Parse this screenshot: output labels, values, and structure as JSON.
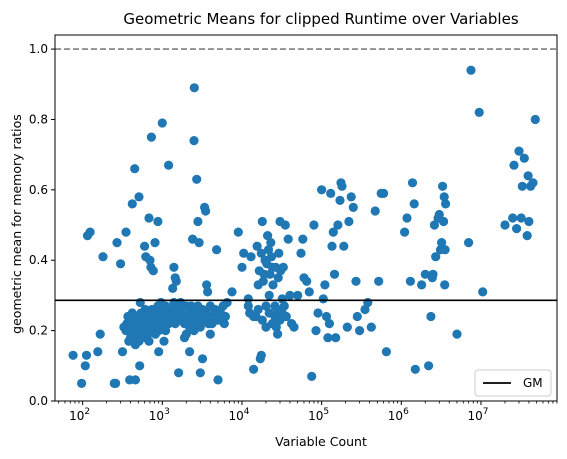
{
  "chart_data": {
    "type": "scatter",
    "title": "Geometric Means for clipped Runtime over Variables",
    "xlabel": "Variable Count",
    "ylabel": "geometric mean for memory ratios",
    "x_scale": "log",
    "xlim": [
      45,
      90000000
    ],
    "ylim": [
      0.0,
      1.04
    ],
    "x_ticks": [
      {
        "value": 100,
        "base": "10",
        "exp": "2"
      },
      {
        "value": 1000,
        "base": "10",
        "exp": "3"
      },
      {
        "value": 10000,
        "base": "10",
        "exp": "4"
      },
      {
        "value": 100000,
        "base": "10",
        "exp": "5"
      },
      {
        "value": 1000000,
        "base": "10",
        "exp": "6"
      },
      {
        "value": 10000000,
        "base": "10",
        "exp": "7"
      }
    ],
    "y_ticks": [
      {
        "value": 0.0,
        "label": "0.0"
      },
      {
        "value": 0.2,
        "label": "0.2"
      },
      {
        "value": 0.4,
        "label": "0.4"
      },
      {
        "value": 0.6,
        "label": "0.6"
      },
      {
        "value": 0.8,
        "label": "0.8"
      },
      {
        "value": 1.0,
        "label": "1.0"
      }
    ],
    "grid": false,
    "legend": {
      "position": "lower-right",
      "entries": [
        {
          "label": "GM",
          "style": "line",
          "color": "#000000"
        }
      ]
    },
    "reference_lines": [
      {
        "name": "GM",
        "y": 0.286,
        "color": "#000000",
        "style": "solid"
      },
      {
        "y": 1.0,
        "color": "#808080",
        "style": "dashed"
      }
    ],
    "marker_color": "#1f77b4",
    "points": [
      [
        76,
        0.13
      ],
      [
        97,
        0.05
      ],
      [
        108,
        0.1
      ],
      [
        112,
        0.13
      ],
      [
        115,
        0.47
      ],
      [
        124,
        0.48
      ],
      [
        155,
        0.14
      ],
      [
        166,
        0.19
      ],
      [
        180,
        0.41
      ],
      [
        250,
        0.05
      ],
      [
        259,
        0.05
      ],
      [
        270,
        0.45
      ],
      [
        300,
        0.39
      ],
      [
        317,
        0.14
      ],
      [
        330,
        0.21
      ],
      [
        350,
        0.48
      ],
      [
        390,
        0.06
      ],
      [
        400,
        0.18
      ],
      [
        420,
        0.56
      ],
      [
        450,
        0.66
      ],
      [
        460,
        0.06
      ],
      [
        480,
        0.17
      ],
      [
        510,
        0.58
      ],
      [
        520,
        0.1
      ],
      [
        530,
        0.28
      ],
      [
        600,
        0.44
      ],
      [
        620,
        0.41
      ],
      [
        680,
        0.52
      ],
      [
        700,
        0.4
      ],
      [
        720,
        0.38
      ],
      [
        730,
        0.75
      ],
      [
        770,
        0.37
      ],
      [
        810,
        0.45
      ],
      [
        880,
        0.51
      ],
      [
        900,
        0.14
      ],
      [
        960,
        0.28
      ],
      [
        1000,
        0.79
      ],
      [
        1050,
        0.17
      ],
      [
        1100,
        0.2
      ],
      [
        1200,
        0.67
      ],
      [
        1300,
        0.26
      ],
      [
        1350,
        0.32
      ],
      [
        1400,
        0.38
      ],
      [
        1450,
        0.35
      ],
      [
        1500,
        0.34
      ],
      [
        1600,
        0.08
      ],
      [
        1700,
        0.26
      ],
      [
        1800,
        0.24
      ],
      [
        1900,
        0.18
      ],
      [
        2000,
        0.19
      ],
      [
        2200,
        0.14
      ],
      [
        2300,
        0.27
      ],
      [
        2400,
        0.46
      ],
      [
        2500,
        0.74
      ],
      [
        2520,
        0.89
      ],
      [
        2700,
        0.63
      ],
      [
        2800,
        0.51
      ],
      [
        2900,
        0.45
      ],
      [
        3000,
        0.08
      ],
      [
        3200,
        0.12
      ],
      [
        3400,
        0.55
      ],
      [
        3500,
        0.54
      ],
      [
        3600,
        0.33
      ],
      [
        3700,
        0.31
      ],
      [
        4000,
        0.19
      ],
      [
        4200,
        0.22
      ],
      [
        4500,
        0.24
      ],
      [
        4800,
        0.43
      ],
      [
        5000,
        0.06
      ],
      [
        5200,
        0.25
      ],
      [
        6000,
        0.22
      ],
      [
        6500,
        0.28
      ],
      [
        7500,
        0.31
      ],
      [
        9000,
        0.48
      ],
      [
        10000,
        0.38
      ],
      [
        10500,
        0.42
      ],
      [
        12000,
        0.29
      ],
      [
        12500,
        0.25
      ],
      [
        13000,
        0.41
      ],
      [
        14000,
        0.09
      ],
      [
        15000,
        0.24
      ],
      [
        16000,
        0.33
      ],
      [
        17000,
        0.12
      ],
      [
        17500,
        0.13
      ],
      [
        18000,
        0.51
      ],
      [
        19000,
        0.36
      ],
      [
        20000,
        0.21
      ],
      [
        21000,
        0.47
      ],
      [
        22000,
        0.3
      ],
      [
        23000,
        0.45
      ],
      [
        24000,
        0.38
      ],
      [
        25000,
        0.22
      ],
      [
        26000,
        0.27
      ],
      [
        27000,
        0.21
      ],
      [
        28000,
        0.19
      ],
      [
        29000,
        0.42
      ],
      [
        30000,
        0.51
      ],
      [
        32000,
        0.29
      ],
      [
        33000,
        0.38
      ],
      [
        35000,
        0.5
      ],
      [
        38000,
        0.46
      ],
      [
        40000,
        0.3
      ],
      [
        42000,
        0.22
      ],
      [
        45000,
        0.21
      ],
      [
        50000,
        0.3
      ],
      [
        55000,
        0.42
      ],
      [
        58000,
        0.46
      ],
      [
        60000,
        0.35
      ],
      [
        65000,
        0.34
      ],
      [
        70000,
        0.31
      ],
      [
        75000,
        0.07
      ],
      [
        80000,
        0.5
      ],
      [
        85000,
        0.2
      ],
      [
        90000,
        0.25
      ],
      [
        100000,
        0.6
      ],
      [
        105000,
        0.29
      ],
      [
        110000,
        0.33
      ],
      [
        115000,
        0.24
      ],
      [
        120000,
        0.18
      ],
      [
        125000,
        0.22
      ],
      [
        130000,
        0.59
      ],
      [
        135000,
        0.44
      ],
      [
        140000,
        0.48
      ],
      [
        145000,
        0.36
      ],
      [
        150000,
        0.18
      ],
      [
        160000,
        0.5
      ],
      [
        170000,
        0.57
      ],
      [
        175000,
        0.62
      ],
      [
        180000,
        0.61
      ],
      [
        190000,
        0.44
      ],
      [
        210000,
        0.21
      ],
      [
        220000,
        0.51
      ],
      [
        235000,
        0.58
      ],
      [
        250000,
        0.55
      ],
      [
        270000,
        0.34
      ],
      [
        280000,
        0.24
      ],
      [
        300000,
        0.2
      ],
      [
        350000,
        0.26
      ],
      [
        380000,
        0.28
      ],
      [
        420000,
        0.21
      ],
      [
        470000,
        0.54
      ],
      [
        520000,
        0.34
      ],
      [
        560000,
        0.59
      ],
      [
        600000,
        0.59
      ],
      [
        650000,
        0.14
      ],
      [
        1100000,
        0.48
      ],
      [
        1180000,
        0.52
      ],
      [
        1300000,
        0.34
      ],
      [
        1380000,
        0.62
      ],
      [
        1450000,
        0.56
      ],
      [
        1500000,
        0.09
      ],
      [
        1800000,
        0.33
      ],
      [
        2000000,
        0.36
      ],
      [
        2200000,
        0.1
      ],
      [
        2350000,
        0.24
      ],
      [
        2450000,
        0.35
      ],
      [
        2500000,
        0.36
      ],
      [
        2600000,
        0.5
      ],
      [
        2700000,
        0.41
      ],
      [
        2900000,
        0.52
      ],
      [
        3000000,
        0.53
      ],
      [
        3100000,
        0.43
      ],
      [
        3200000,
        0.45
      ],
      [
        3300000,
        0.61
      ],
      [
        3400000,
        0.51
      ],
      [
        3450000,
        0.58
      ],
      [
        3500000,
        0.33
      ],
      [
        3550000,
        0.43
      ],
      [
        3600000,
        0.56
      ],
      [
        5000000,
        0.19
      ],
      [
        7000000,
        0.45
      ],
      [
        7500000,
        0.94
      ],
      [
        9500000,
        0.82
      ],
      [
        10500000,
        0.31
      ],
      [
        20000000,
        0.5
      ],
      [
        25000000,
        0.52
      ],
      [
        26000000,
        0.67
      ],
      [
        28000000,
        0.49
      ],
      [
        30000000,
        0.71
      ],
      [
        32000000,
        0.52
      ],
      [
        33000000,
        0.61
      ],
      [
        35000000,
        0.69
      ],
      [
        38000000,
        0.47
      ],
      [
        39000000,
        0.64
      ],
      [
        40000000,
        0.51
      ],
      [
        42000000,
        0.61
      ],
      [
        45000000,
        0.62
      ],
      [
        48000000,
        0.8
      ],
      [
        350,
        0.2
      ],
      [
        360,
        0.22
      ],
      [
        370,
        0.24
      ],
      [
        380,
        0.17
      ],
      [
        390,
        0.21
      ],
      [
        400,
        0.23
      ],
      [
        410,
        0.19
      ],
      [
        420,
        0.25
      ],
      [
        430,
        0.2
      ],
      [
        440,
        0.18
      ],
      [
        450,
        0.22
      ],
      [
        460,
        0.16
      ],
      [
        470,
        0.24
      ],
      [
        480,
        0.21
      ],
      [
        490,
        0.19
      ],
      [
        500,
        0.23
      ],
      [
        510,
        0.17
      ],
      [
        520,
        0.22
      ],
      [
        530,
        0.2
      ],
      [
        540,
        0.25
      ],
      [
        550,
        0.18
      ],
      [
        560,
        0.24
      ],
      [
        570,
        0.21
      ],
      [
        580,
        0.19
      ],
      [
        590,
        0.23
      ],
      [
        600,
        0.2
      ],
      [
        610,
        0.26
      ],
      [
        620,
        0.18
      ],
      [
        630,
        0.22
      ],
      [
        640,
        0.24
      ],
      [
        650,
        0.21
      ],
      [
        660,
        0.19
      ],
      [
        670,
        0.25
      ],
      [
        680,
        0.17
      ],
      [
        690,
        0.23
      ],
      [
        700,
        0.2
      ],
      [
        720,
        0.22
      ],
      [
        740,
        0.26
      ],
      [
        760,
        0.24
      ],
      [
        780,
        0.21
      ],
      [
        800,
        0.23
      ],
      [
        820,
        0.19
      ],
      [
        840,
        0.25
      ],
      [
        860,
        0.22
      ],
      [
        880,
        0.27
      ],
      [
        900,
        0.2
      ],
      [
        920,
        0.24
      ],
      [
        940,
        0.22
      ],
      [
        960,
        0.26
      ],
      [
        980,
        0.23
      ],
      [
        1000,
        0.25
      ],
      [
        1050,
        0.21
      ],
      [
        1100,
        0.27
      ],
      [
        1150,
        0.24
      ],
      [
        1200,
        0.22
      ],
      [
        1250,
        0.26
      ],
      [
        1300,
        0.23
      ],
      [
        1350,
        0.25
      ],
      [
        1400,
        0.28
      ],
      [
        1450,
        0.22
      ],
      [
        1500,
        0.27
      ],
      [
        1550,
        0.24
      ],
      [
        1600,
        0.26
      ],
      [
        1650,
        0.23
      ],
      [
        1700,
        0.28
      ],
      [
        1800,
        0.25
      ],
      [
        1900,
        0.22
      ],
      [
        2000,
        0.27
      ],
      [
        2100,
        0.24
      ],
      [
        2200,
        0.21
      ],
      [
        2300,
        0.26
      ],
      [
        2400,
        0.23
      ],
      [
        2500,
        0.2
      ],
      [
        2600,
        0.25
      ],
      [
        2700,
        0.22
      ],
      [
        2800,
        0.27
      ],
      [
        2900,
        0.24
      ],
      [
        3000,
        0.21
      ],
      [
        3200,
        0.26
      ],
      [
        3400,
        0.23
      ],
      [
        3600,
        0.25
      ],
      [
        3800,
        0.22
      ],
      [
        4000,
        0.27
      ],
      [
        4300,
        0.24
      ],
      [
        4600,
        0.26
      ],
      [
        5000,
        0.23
      ],
      [
        5400,
        0.25
      ],
      [
        5800,
        0.27
      ],
      [
        6200,
        0.24
      ],
      [
        12000,
        0.27
      ],
      [
        14000,
        0.24
      ],
      [
        16000,
        0.26
      ],
      [
        18000,
        0.23
      ],
      [
        20000,
        0.27
      ],
      [
        22000,
        0.25
      ],
      [
        24000,
        0.22
      ],
      [
        26000,
        0.24
      ],
      [
        28000,
        0.26
      ],
      [
        30000,
        0.23
      ],
      [
        32000,
        0.25
      ],
      [
        34000,
        0.27
      ],
      [
        36000,
        0.24
      ],
      [
        16500,
        0.37
      ],
      [
        18500,
        0.34
      ],
      [
        20500,
        0.39
      ],
      [
        22500,
        0.36
      ],
      [
        24500,
        0.33
      ],
      [
        26500,
        0.38
      ],
      [
        28500,
        0.35
      ],
      [
        30500,
        0.37
      ],
      [
        15500,
        0.44
      ],
      [
        17500,
        0.42
      ],
      [
        19500,
        0.4
      ],
      [
        21500,
        0.43
      ],
      [
        23500,
        0.41
      ]
    ]
  }
}
